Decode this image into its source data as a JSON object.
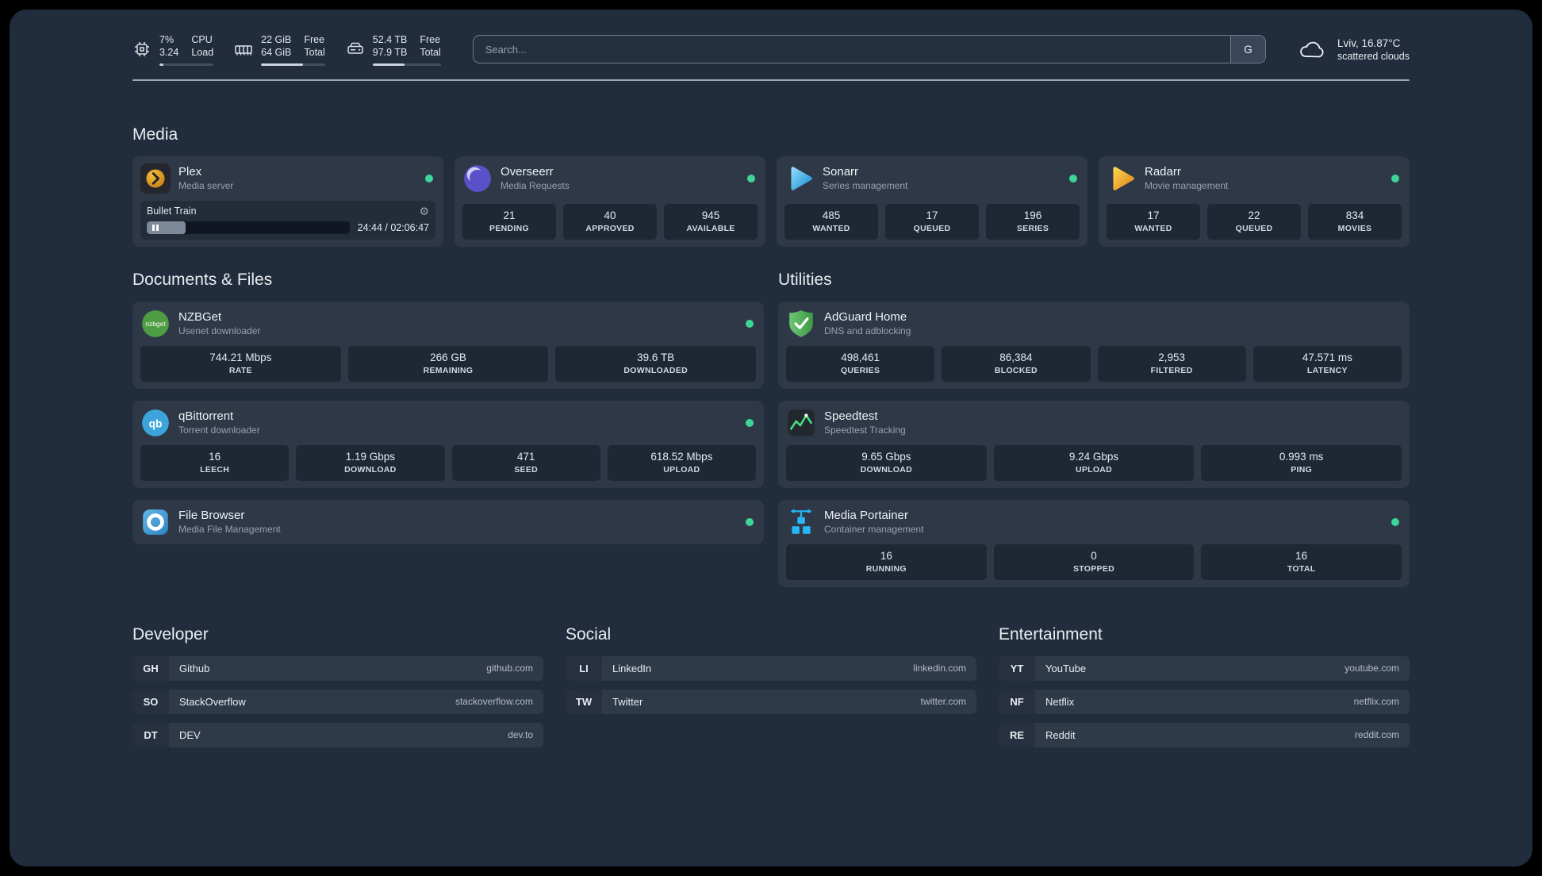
{
  "topbar": {
    "cpu": {
      "values": [
        "7%",
        "3.24"
      ],
      "labels": [
        "CPU",
        "Load"
      ],
      "percent": 7
    },
    "memory": {
      "values": [
        "22 GiB",
        "64 GiB"
      ],
      "labels": [
        "Free",
        "Total"
      ],
      "percent": 66
    },
    "disk": {
      "values": [
        "52.4 TB",
        "97.9 TB"
      ],
      "labels": [
        "Free",
        "Total"
      ],
      "percent": 47
    },
    "search": {
      "placeholder": "Search...",
      "provider": "G"
    },
    "weather": {
      "location": "Lviv, 16.87°C",
      "condition": "scattered clouds"
    }
  },
  "sections": {
    "media": {
      "title": "Media"
    },
    "documents": {
      "title": "Documents & Files"
    },
    "utilities": {
      "title": "Utilities"
    }
  },
  "services": {
    "plex": {
      "name": "Plex",
      "subtitle": "Media server",
      "now_playing": "Bullet Train",
      "time": "24:44 / 02:06:47",
      "progress_percent": 19
    },
    "overseerr": {
      "name": "Overseerr",
      "subtitle": "Media Requests",
      "stats": [
        {
          "value": "21",
          "label": "PENDING"
        },
        {
          "value": "40",
          "label": "APPROVED"
        },
        {
          "value": "945",
          "label": "AVAILABLE"
        }
      ]
    },
    "sonarr": {
      "name": "Sonarr",
      "subtitle": "Series management",
      "stats": [
        {
          "value": "485",
          "label": "WANTED"
        },
        {
          "value": "17",
          "label": "QUEUED"
        },
        {
          "value": "196",
          "label": "SERIES"
        }
      ]
    },
    "radarr": {
      "name": "Radarr",
      "subtitle": "Movie management",
      "stats": [
        {
          "value": "17",
          "label": "WANTED"
        },
        {
          "value": "22",
          "label": "QUEUED"
        },
        {
          "value": "834",
          "label": "MOVIES"
        }
      ]
    },
    "nzbget": {
      "name": "NZBGet",
      "subtitle": "Usenet downloader",
      "icon_text": "nzbget",
      "stats": [
        {
          "value": "744.21 Mbps",
          "label": "RATE"
        },
        {
          "value": "266 GB",
          "label": "REMAINING"
        },
        {
          "value": "39.6 TB",
          "label": "DOWNLOADED"
        }
      ]
    },
    "qbittorrent": {
      "name": "qBittorrent",
      "subtitle": "Torrent downloader",
      "icon_text": "qb",
      "stats": [
        {
          "value": "16",
          "label": "LEECH"
        },
        {
          "value": "1.19 Gbps",
          "label": "DOWNLOAD"
        },
        {
          "value": "471",
          "label": "SEED"
        },
        {
          "value": "618.52 Mbps",
          "label": "UPLOAD"
        }
      ]
    },
    "filebrowser": {
      "name": "File Browser",
      "subtitle": "Media File Management"
    },
    "adguard": {
      "name": "AdGuard Home",
      "subtitle": "DNS and adblocking",
      "stats": [
        {
          "value": "498,461",
          "label": "QUERIES"
        },
        {
          "value": "86,384",
          "label": "BLOCKED"
        },
        {
          "value": "2,953",
          "label": "FILTERED"
        },
        {
          "value": "47.571 ms",
          "label": "LATENCY"
        }
      ]
    },
    "speedtest": {
      "name": "Speedtest",
      "subtitle": "Speedtest Tracking",
      "stats": [
        {
          "value": "9.65 Gbps",
          "label": "DOWNLOAD"
        },
        {
          "value": "9.24 Gbps",
          "label": "UPLOAD"
        },
        {
          "value": "0.993 ms",
          "label": "PING"
        }
      ]
    },
    "portainer": {
      "name": "Media Portainer",
      "subtitle": "Container management",
      "stats": [
        {
          "value": "16",
          "label": "RUNNING"
        },
        {
          "value": "0",
          "label": "STOPPED"
        },
        {
          "value": "16",
          "label": "TOTAL"
        }
      ]
    }
  },
  "bookmarks": {
    "developer": {
      "title": "Developer",
      "items": [
        {
          "abbr": "GH",
          "name": "Github",
          "url": "github.com"
        },
        {
          "abbr": "SO",
          "name": "StackOverflow",
          "url": "stackoverflow.com"
        },
        {
          "abbr": "DT",
          "name": "DEV",
          "url": "dev.to"
        }
      ]
    },
    "social": {
      "title": "Social",
      "items": [
        {
          "abbr": "LI",
          "name": "LinkedIn",
          "url": "linkedin.com"
        },
        {
          "abbr": "TW",
          "name": "Twitter",
          "url": "twitter.com"
        }
      ]
    },
    "entertainment": {
      "title": "Entertainment",
      "items": [
        {
          "abbr": "YT",
          "name": "YouTube",
          "url": "youtube.com"
        },
        {
          "abbr": "NF",
          "name": "Netflix",
          "url": "netflix.com"
        },
        {
          "abbr": "RE",
          "name": "Reddit",
          "url": "reddit.com"
        }
      ]
    }
  }
}
